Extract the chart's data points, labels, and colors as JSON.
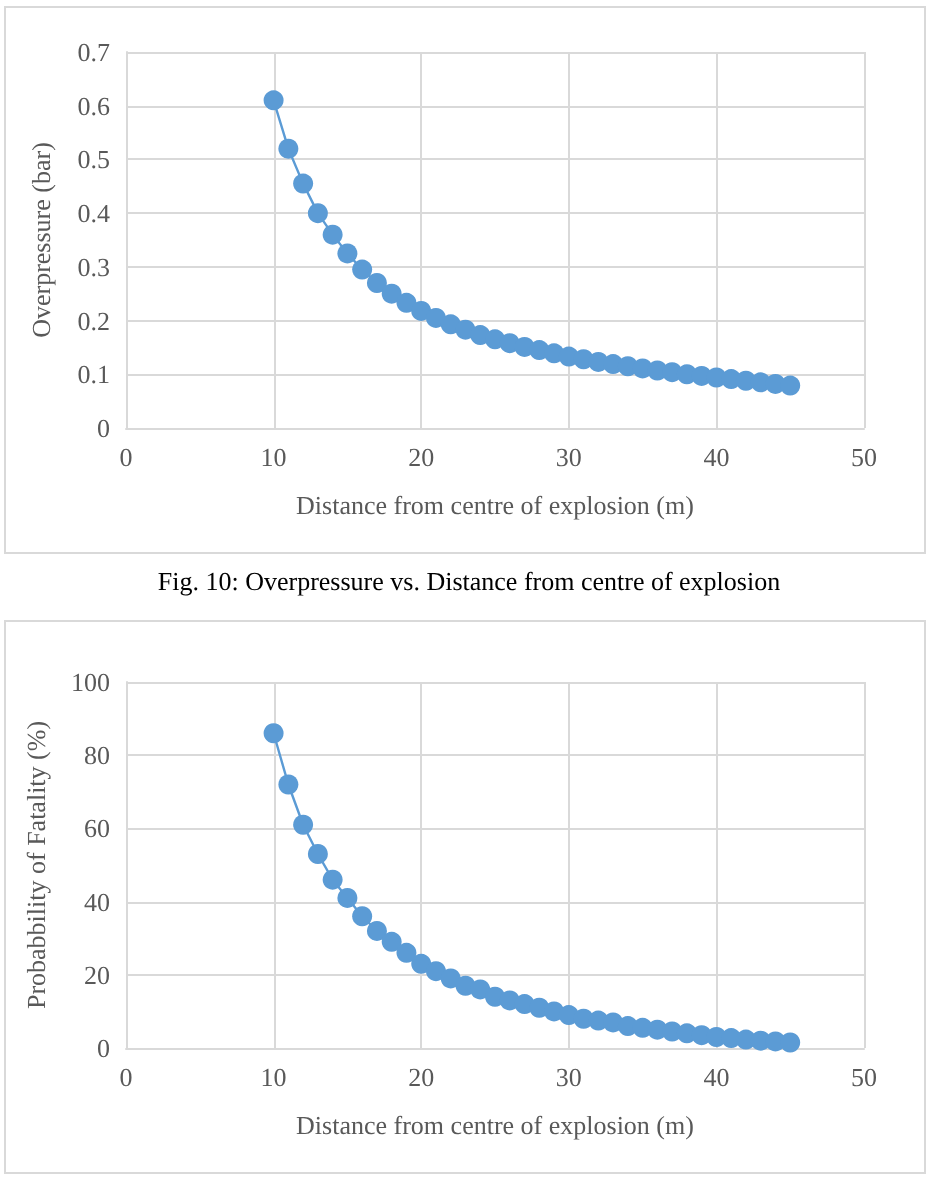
{
  "chart_data": [
    {
      "type": "line",
      "xlabel": "Distance from centre of explosion (m)",
      "ylabel": "Overpressure (bar)",
      "annotations": [
        "Fig. 10: Overpressure vs. Distance from centre of explosion"
      ],
      "x": [
        10,
        11,
        12,
        13,
        14,
        15,
        16,
        17,
        18,
        19,
        20,
        21,
        22,
        23,
        24,
        25,
        26,
        27,
        28,
        29,
        30,
        31,
        32,
        33,
        34,
        35,
        36,
        37,
        38,
        39,
        40,
        41,
        42,
        43,
        44,
        45
      ],
      "series": [
        {
          "color": "#5b9bd5",
          "values": [
            0.61,
            0.52,
            0.455,
            0.4,
            0.36,
            0.325,
            0.295,
            0.27,
            0.25,
            0.233,
            0.218,
            0.205,
            0.193,
            0.183,
            0.173,
            0.165,
            0.158,
            0.151,
            0.145,
            0.139,
            0.133,
            0.128,
            0.123,
            0.119,
            0.115,
            0.111,
            0.107,
            0.104,
            0.1,
            0.097,
            0.094,
            0.091,
            0.088,
            0.085,
            0.082,
            0.079
          ]
        }
      ],
      "xlim": [
        0,
        50
      ],
      "xticks": [
        0,
        10,
        20,
        30,
        40,
        50
      ],
      "ylim": [
        0,
        0.7
      ],
      "yticks": [
        0,
        0.1,
        0.2,
        0.3,
        0.4,
        0.5,
        0.6,
        0.7
      ],
      "grid": true,
      "marker": "circle",
      "line_style": "solid"
    },
    {
      "type": "line",
      "xlabel": "Distance from centre of explosion (m)",
      "ylabel": "Probabbility of Fatality (%)",
      "x": [
        10,
        11,
        12,
        13,
        14,
        15,
        16,
        17,
        18,
        19,
        20,
        21,
        22,
        23,
        24,
        25,
        26,
        27,
        28,
        29,
        30,
        31,
        32,
        33,
        34,
        35,
        36,
        37,
        38,
        39,
        40,
        41,
        42,
        43,
        44,
        45
      ],
      "series": [
        {
          "color": "#5b9bd5",
          "values": [
            86,
            72,
            61,
            53,
            46,
            41,
            36,
            32,
            29,
            26,
            23,
            21,
            19,
            17,
            16,
            14,
            13,
            12,
            11,
            10,
            9,
            8,
            7.5,
            7,
            6,
            5.5,
            5,
            4.5,
            4,
            3.5,
            3,
            2.7,
            2.3,
            2,
            1.8,
            1.5
          ]
        }
      ],
      "xlim": [
        0,
        50
      ],
      "xticks": [
        0,
        10,
        20,
        30,
        40,
        50
      ],
      "ylim": [
        0,
        100
      ],
      "yticks": [
        0,
        20,
        40,
        60,
        80,
        100
      ],
      "grid": true,
      "marker": "circle",
      "line_style": "solid"
    }
  ]
}
